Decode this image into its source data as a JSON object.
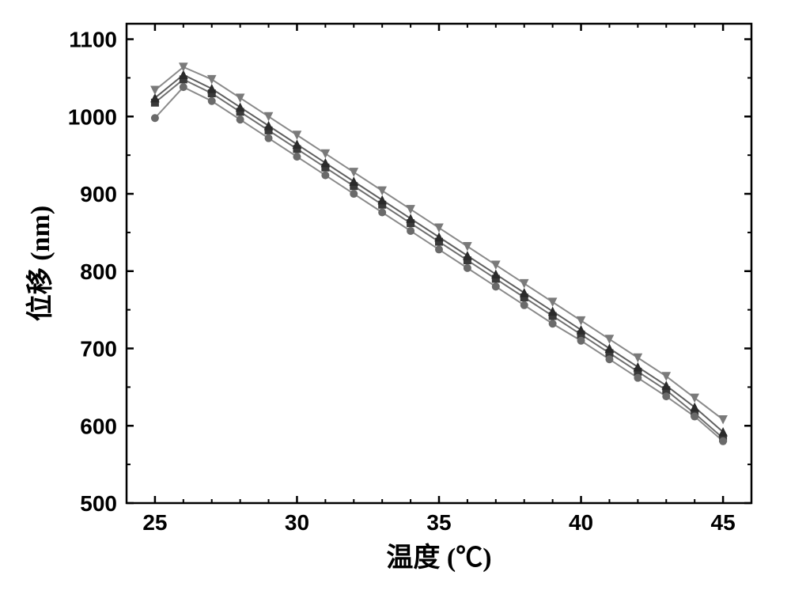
{
  "chart": {
    "type": "scatter-line",
    "background_color": "#ffffff",
    "plot_border_color": "#000000",
    "plot_border_width": 2.5,
    "xlabel": "温度 (℃)",
    "ylabel": "位移 (nm)",
    "label_fontsize": 34,
    "tick_fontsize": 28,
    "tick_fontweight": "700",
    "xlim": [
      24,
      46
    ],
    "ylim": [
      500,
      1120
    ],
    "x_major_ticks": [
      25,
      30,
      35,
      40,
      45
    ],
    "x_minor_step": 1,
    "y_major_ticks": [
      500,
      600,
      700,
      800,
      900,
      1000,
      1100
    ],
    "y_minor_step": 50,
    "tick_len_major": 9,
    "tick_len_minor": 5,
    "series": [
      {
        "name": "series-a-square",
        "marker": "square",
        "marker_size": 9,
        "marker_color": "#3a3a3a",
        "line_color": "#6f6f6f",
        "line_width": 2,
        "points": [
          [
            25,
            1018
          ],
          [
            26,
            1048
          ],
          [
            27,
            1030
          ],
          [
            28,
            1006
          ],
          [
            29,
            982
          ],
          [
            30,
            958
          ],
          [
            31,
            934
          ],
          [
            32,
            910
          ],
          [
            33,
            886
          ],
          [
            34,
            862
          ],
          [
            35,
            838
          ],
          [
            36,
            814
          ],
          [
            37,
            790
          ],
          [
            38,
            766
          ],
          [
            39,
            742
          ],
          [
            40,
            718
          ],
          [
            41,
            694
          ],
          [
            42,
            670
          ],
          [
            43,
            646
          ],
          [
            44,
            616
          ],
          [
            45,
            584
          ]
        ]
      },
      {
        "name": "series-b-circle",
        "marker": "circle",
        "marker_size": 9,
        "marker_color": "#6a6a6a",
        "line_color": "#8a8a8a",
        "line_width": 2,
        "points": [
          [
            25,
            998
          ],
          [
            26,
            1038
          ],
          [
            27,
            1020
          ],
          [
            28,
            996
          ],
          [
            29,
            972
          ],
          [
            30,
            948
          ],
          [
            31,
            924
          ],
          [
            32,
            900
          ],
          [
            33,
            876
          ],
          [
            34,
            852
          ],
          [
            35,
            828
          ],
          [
            36,
            804
          ],
          [
            37,
            780
          ],
          [
            38,
            756
          ],
          [
            39,
            732
          ],
          [
            40,
            710
          ],
          [
            41,
            686
          ],
          [
            42,
            662
          ],
          [
            43,
            638
          ],
          [
            44,
            612
          ],
          [
            45,
            580
          ]
        ]
      },
      {
        "name": "series-c-triangle-up",
        "marker": "triangle-up",
        "marker_size": 10,
        "marker_color": "#2b2b2b",
        "line_color": "#5f5f5f",
        "line_width": 2,
        "points": [
          [
            25,
            1024
          ],
          [
            26,
            1054
          ],
          [
            27,
            1036
          ],
          [
            28,
            1012
          ],
          [
            29,
            988
          ],
          [
            30,
            964
          ],
          [
            31,
            940
          ],
          [
            32,
            916
          ],
          [
            33,
            892
          ],
          [
            34,
            868
          ],
          [
            35,
            844
          ],
          [
            36,
            820
          ],
          [
            37,
            796
          ],
          [
            38,
            772
          ],
          [
            39,
            748
          ],
          [
            40,
            724
          ],
          [
            41,
            700
          ],
          [
            42,
            676
          ],
          [
            43,
            652
          ],
          [
            44,
            624
          ],
          [
            45,
            592
          ]
        ]
      },
      {
        "name": "series-d-triangle-down",
        "marker": "triangle-down",
        "marker_size": 10,
        "marker_color": "#7a7a7a",
        "line_color": "#8a8a8a",
        "line_width": 2,
        "points": [
          [
            25,
            1034
          ],
          [
            26,
            1064
          ],
          [
            27,
            1048
          ],
          [
            28,
            1024
          ],
          [
            29,
            1000
          ],
          [
            30,
            976
          ],
          [
            31,
            952
          ],
          [
            32,
            928
          ],
          [
            33,
            904
          ],
          [
            34,
            880
          ],
          [
            35,
            856
          ],
          [
            36,
            832
          ],
          [
            37,
            808
          ],
          [
            38,
            784
          ],
          [
            39,
            760
          ],
          [
            40,
            736
          ],
          [
            41,
            712
          ],
          [
            42,
            688
          ],
          [
            43,
            664
          ],
          [
            44,
            636
          ],
          [
            45,
            608
          ]
        ]
      }
    ]
  }
}
